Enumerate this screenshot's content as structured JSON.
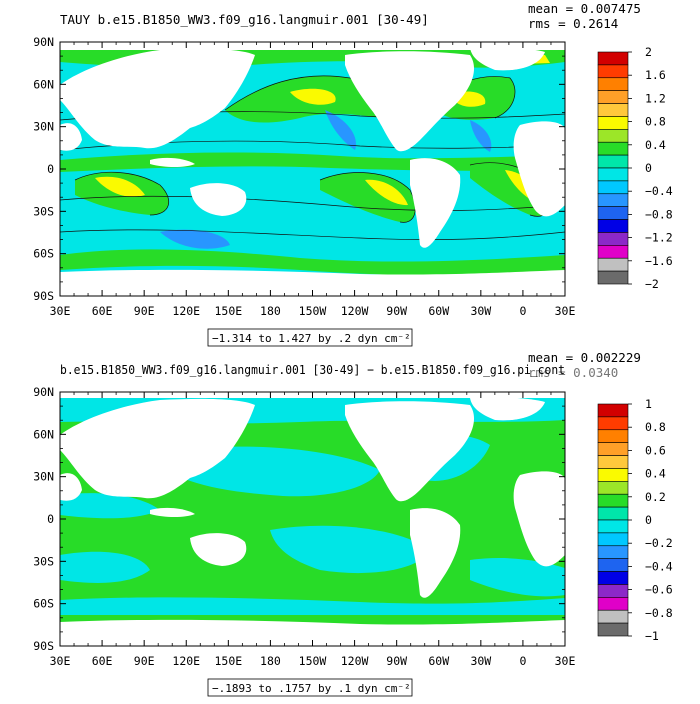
{
  "colors": {
    "scale": [
      "#6b6b6b",
      "#c0c0c0",
      "#e000c8",
      "#8c28c8",
      "#0000e6",
      "#1e64f0",
      "#2896ff",
      "#00c8ff",
      "#00e6e6",
      "#00e6aa",
      "#28dc28",
      "#9ce628",
      "#fafa00",
      "#ffc83c",
      "#ffa028",
      "#ff8000",
      "#ff3c00",
      "#d20000"
    ],
    "ocean_pos": "#28dc28",
    "ocean_neg": "#00e6e6",
    "contour": "#111111"
  },
  "chart_data": [
    {
      "type": "heatmap",
      "title": "TAUY b.e15.B1850_WW3.f09_g16.langmuir.001 [30-49]",
      "stats": {
        "mean": "mean = 0.007475",
        "rms": "rms = 0.2614"
      },
      "x_ticks": [
        "30E",
        "60E",
        "90E",
        "120E",
        "150E",
        "180",
        "150W",
        "120W",
        "90W",
        "60W",
        "30W",
        "0",
        "30E"
      ],
      "y_ticks": [
        "90N",
        "60N",
        "30N",
        "0",
        "30S",
        "60S",
        "90S"
      ],
      "x_range": [
        "30E",
        "30E"
      ],
      "y_range": [
        "90S",
        "90N"
      ],
      "contour_note": "−1.314 to 1.427 by .2 dyn cm⁻²",
      "colorbar_labels": [
        "2",
        "1.6",
        "1.2",
        "0.8",
        "0.4",
        "0",
        "−0.4",
        "−0.8",
        "−1.2",
        "−1.6",
        "−2"
      ],
      "value_range": [
        -1.314,
        1.427
      ],
      "contour_interval": 0.2
    },
    {
      "type": "heatmap",
      "title": "b.e15.B1850_WW3.f09_g16.langmuir.001 [30-49] − b.e15.B1850.f09_g16.pi_cont",
      "stats": {
        "mean": "mean = 0.002229",
        "rms": "rms = 0.0340"
      },
      "x_ticks": [
        "30E",
        "60E",
        "90E",
        "120E",
        "150E",
        "180",
        "150W",
        "120W",
        "90W",
        "60W",
        "30W",
        "0",
        "30E"
      ],
      "y_ticks": [
        "90N",
        "60N",
        "30N",
        "0",
        "30S",
        "60S",
        "90S"
      ],
      "x_range": [
        "30E",
        "30E"
      ],
      "y_range": [
        "90S",
        "90N"
      ],
      "contour_note": "−.1893 to .1757 by .1 dyn cm⁻²",
      "colorbar_labels": [
        "1",
        "0.8",
        "0.6",
        "0.4",
        "0.2",
        "0",
        "−0.2",
        "−0.4",
        "−0.6",
        "−0.8",
        "−1"
      ],
      "value_range": [
        -0.1893,
        0.1757
      ],
      "contour_interval": 0.1
    }
  ]
}
